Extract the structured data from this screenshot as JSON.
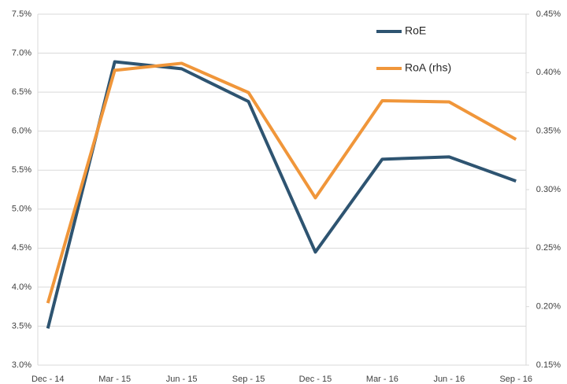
{
  "chart_data": {
    "type": "line",
    "categories": [
      "Dec - 14",
      "Mar - 15",
      "Jun - 15",
      "Sep - 15",
      "Dec - 15",
      "Mar - 16",
      "Jun - 16",
      "Sep - 16"
    ],
    "series": [
      {
        "name": "RoE",
        "color": "#2e5471",
        "values": [
          3.47,
          6.89,
          6.8,
          6.38,
          4.45,
          5.64,
          5.67,
          5.36
        ]
      },
      {
        "name": "RoA (rhs)",
        "color": "#f0963a",
        "axis": "y2",
        "values": [
          0.203,
          0.402,
          0.408,
          0.383,
          0.293,
          0.376,
          0.375,
          0.343
        ]
      }
    ],
    "ylim": [
      3.0,
      7.5
    ],
    "yticks": [
      {
        "value": 3.0,
        "label": "3.0%"
      },
      {
        "value": 3.5,
        "label": "3.5%"
      },
      {
        "value": 4.0,
        "label": "4.0%"
      },
      {
        "value": 4.5,
        "label": "4.5%"
      },
      {
        "value": 5.0,
        "label": "5.0%"
      },
      {
        "value": 5.5,
        "label": "5.5%"
      },
      {
        "value": 6.0,
        "label": "6.0%"
      },
      {
        "value": 6.5,
        "label": "6.5%"
      },
      {
        "value": 7.0,
        "label": "7.0%"
      },
      {
        "value": 7.5,
        "label": "7.5%"
      }
    ],
    "y2lim": [
      0.15,
      0.45
    ],
    "y2ticks": [
      {
        "value": 0.15,
        "label": "0.15%"
      },
      {
        "value": 0.2,
        "label": "0.20%"
      },
      {
        "value": 0.25,
        "label": "0.25%"
      },
      {
        "value": 0.3,
        "label": "0.30%"
      },
      {
        "value": 0.35,
        "label": "0.35%"
      },
      {
        "value": 0.4,
        "label": "0.40%"
      },
      {
        "value": 0.45,
        "label": "0.45%"
      }
    ],
    "grid": true,
    "legend": "upper right"
  }
}
